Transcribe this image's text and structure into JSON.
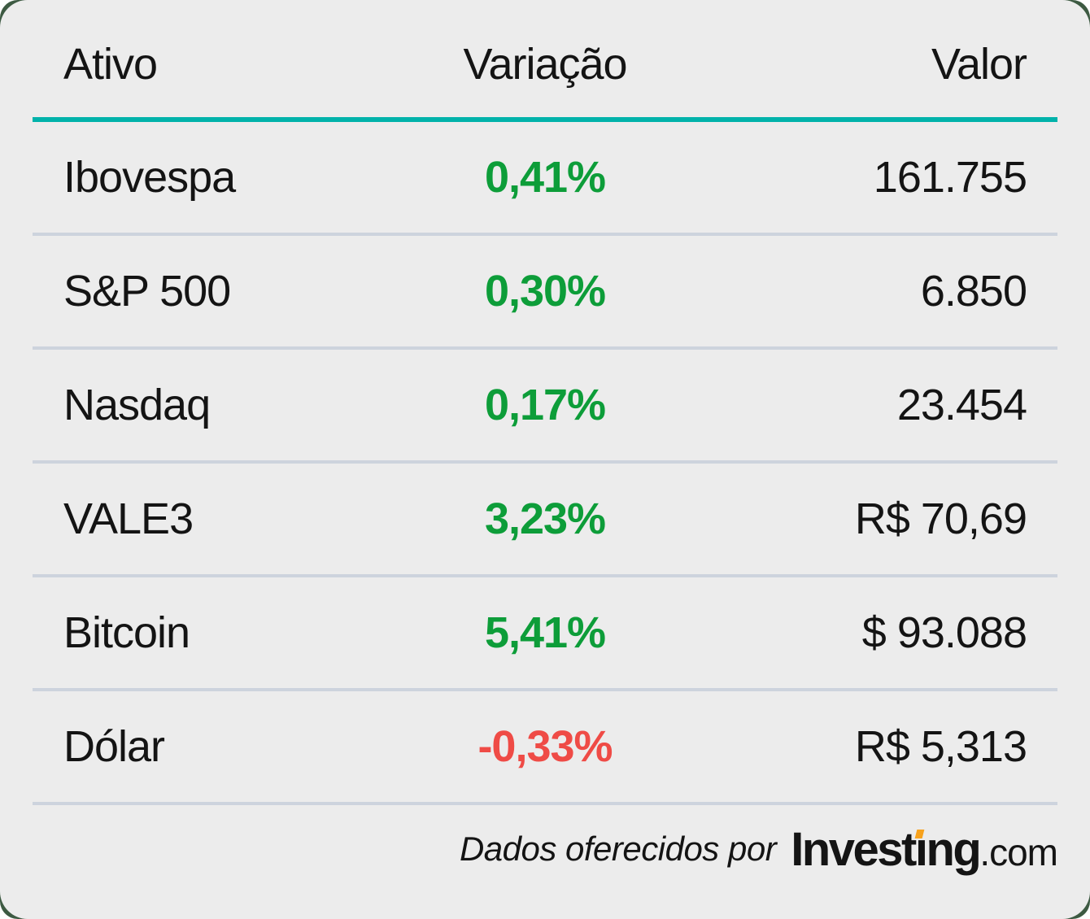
{
  "table": {
    "columns": [
      "Ativo",
      "Variação",
      "Valor"
    ],
    "rows": [
      {
        "asset": "Ibovespa",
        "variation": "0,41%",
        "value": "161.755",
        "direction": "up"
      },
      {
        "asset": "S&P 500",
        "variation": "0,30%",
        "value": "6.850",
        "direction": "up"
      },
      {
        "asset": "Nasdaq",
        "variation": "0,17%",
        "value": "23.454",
        "direction": "up"
      },
      {
        "asset": "VALE3",
        "variation": "3,23%",
        "value": "R$ 70,69",
        "direction": "up"
      },
      {
        "asset": "Bitcoin",
        "variation": "5,41%",
        "value": "$ 93.088",
        "direction": "up"
      },
      {
        "asset": "Dólar",
        "variation": "-0,33%",
        "value": "R$ 5,313",
        "direction": "down"
      }
    ]
  },
  "footer": {
    "caption": "Dados oferecidos por",
    "logo": {
      "part1": "Invest",
      "dotless_i": "ı",
      "part2": "ng",
      "suffix": ".com"
    }
  },
  "colors": {
    "panel_bg": "#ececec",
    "backdrop_green": "#3d5a42",
    "teal": "#00b2aa",
    "separator": "#cdd3dd",
    "text": "#141414",
    "green": "#0d9d39",
    "red": "#ef4b46",
    "orange": "#f7a21d"
  },
  "chart_data": {
    "type": "table",
    "title": "",
    "columns": [
      "Ativo",
      "Variação",
      "Valor"
    ],
    "rows": [
      [
        "Ibovespa",
        "0,41%",
        "161.755"
      ],
      [
        "S&P 500",
        "0,30%",
        "6.850"
      ],
      [
        "Nasdaq",
        "0,17%",
        "23.454"
      ],
      [
        "VALE3",
        "3,23%",
        "R$ 70,69"
      ],
      [
        "Bitcoin",
        "5,41%",
        "$ 93.088"
      ],
      [
        "Dólar",
        "-0,33%",
        "R$ 5,313"
      ]
    ],
    "variation_pct": [
      0.41,
      0.3,
      0.17,
      3.23,
      5.41,
      -0.33
    ],
    "attribution": "Dados oferecidos por Investing.com"
  }
}
